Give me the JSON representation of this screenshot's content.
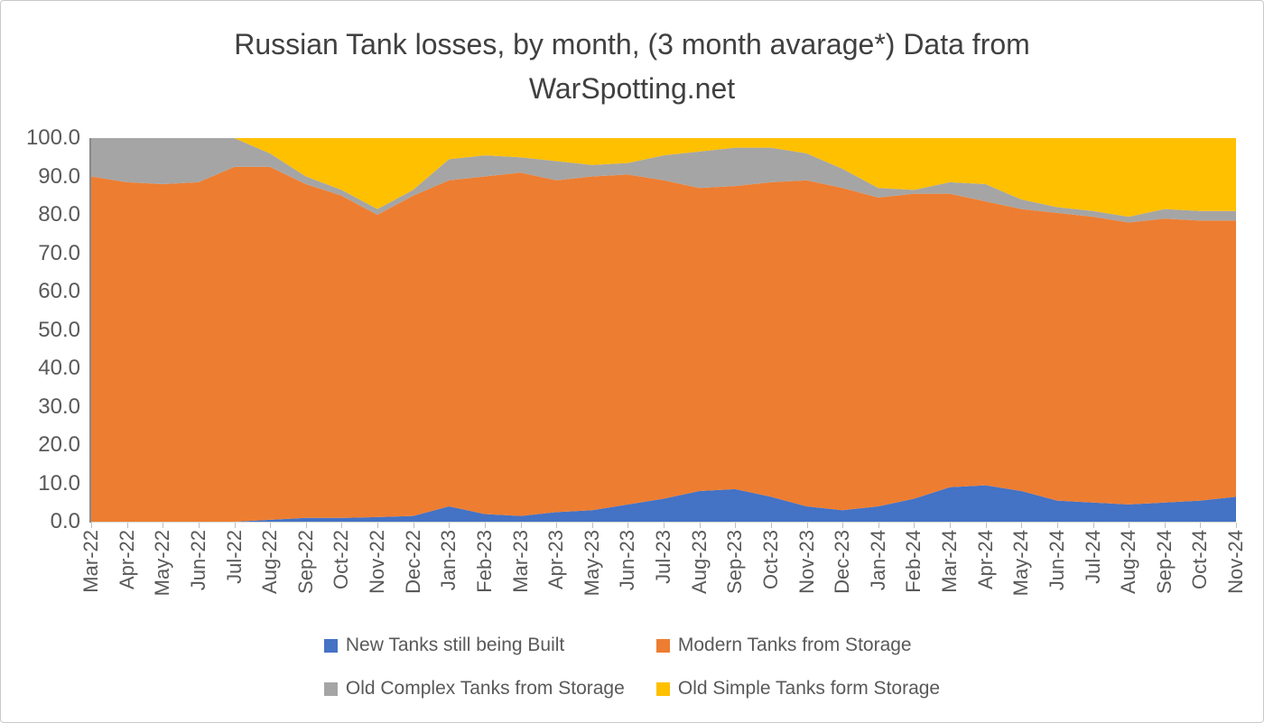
{
  "title": "Russian Tank losses, by month, (3 month avarage*) Data from WarSpotting.net",
  "colors": {
    "series_blue": "#4472C4",
    "series_orange": "#ED7D31",
    "series_gray": "#A5A5A5",
    "series_yellow": "#FFC000",
    "axis_text": "#595959",
    "title_text": "#404040"
  },
  "chart_data": {
    "type": "area",
    "stacking": "percent",
    "title": "Russian Tank losses, by month, (3 month avarage*) Data from WarSpotting.net",
    "xlabel": "",
    "ylabel": "",
    "ylim": [
      0,
      100
    ],
    "grid": false,
    "legend_position": "bottom",
    "ytick_labels": [
      "0.0",
      "10.0",
      "20.0",
      "30.0",
      "40.0",
      "50.0",
      "60.0",
      "70.0",
      "80.0",
      "90.0",
      "100.0"
    ],
    "x": [
      "Mar-22",
      "Apr-22",
      "May-22",
      "Jun-22",
      "Jul-22",
      "Aug-22",
      "Sep-22",
      "Oct-22",
      "Nov-22",
      "Dec-22",
      "Jan-23",
      "Feb-23",
      "Mar-23",
      "Apr-23",
      "May-23",
      "Jun-23",
      "Jul-23",
      "Aug-23",
      "Sep-23",
      "Oct-23",
      "Nov-23",
      "Dec-23",
      "Jan-24",
      "Feb-24",
      "Mar-24",
      "Apr-24",
      "May-24",
      "Jun-24",
      "Jul-24",
      "Aug-24",
      "Sep-24",
      "Oct-24",
      "Nov-24"
    ],
    "series": [
      {
        "name": "New Tanks still being Built",
        "color": "#4472C4",
        "values": [
          0,
          0,
          0,
          0,
          0,
          0.5,
          1,
          1,
          1.2,
          1.5,
          4,
          2,
          1.5,
          2.5,
          3,
          4.5,
          6,
          8,
          8.5,
          6.5,
          4,
          3,
          4,
          6,
          9,
          9.5,
          8,
          5.5,
          5,
          4.5,
          5,
          5.5,
          6.5
        ]
      },
      {
        "name": "Modern Tanks from Storage",
        "color": "#ED7D31",
        "values": [
          90,
          88.5,
          88,
          88.5,
          92.5,
          92,
          87,
          84,
          78.8,
          83.5,
          85,
          88,
          89.5,
          86.5,
          87,
          86,
          83,
          79,
          79,
          82,
          85,
          84,
          80.5,
          79.5,
          76.5,
          74,
          73.5,
          75,
          74.5,
          73.5,
          74,
          73,
          72
        ]
      },
      {
        "name": "Old Complex Tanks from Storage",
        "color": "#A5A5A5",
        "values": [
          10,
          11.5,
          12,
          11.5,
          7.5,
          3.5,
          2,
          1.5,
          1.5,
          1.5,
          5.5,
          5.5,
          4,
          5,
          3,
          3,
          6.5,
          9.5,
          10,
          9,
          7,
          5,
          2.5,
          1,
          3,
          4.5,
          2.5,
          1.5,
          1.5,
          1.5,
          2.5,
          2.5,
          2.5
        ]
      },
      {
        "name": "Old Simple Tanks form Storage",
        "color": "#FFC000",
        "values": [
          0,
          0,
          0,
          0,
          0,
          4,
          10,
          13.5,
          18.5,
          13.5,
          5.5,
          4.5,
          5,
          6,
          7,
          6.5,
          4.5,
          3.5,
          2.5,
          2.5,
          4,
          8,
          13,
          13.5,
          11.5,
          12,
          16,
          18,
          19,
          20.5,
          18.5,
          19,
          19
        ]
      }
    ]
  }
}
